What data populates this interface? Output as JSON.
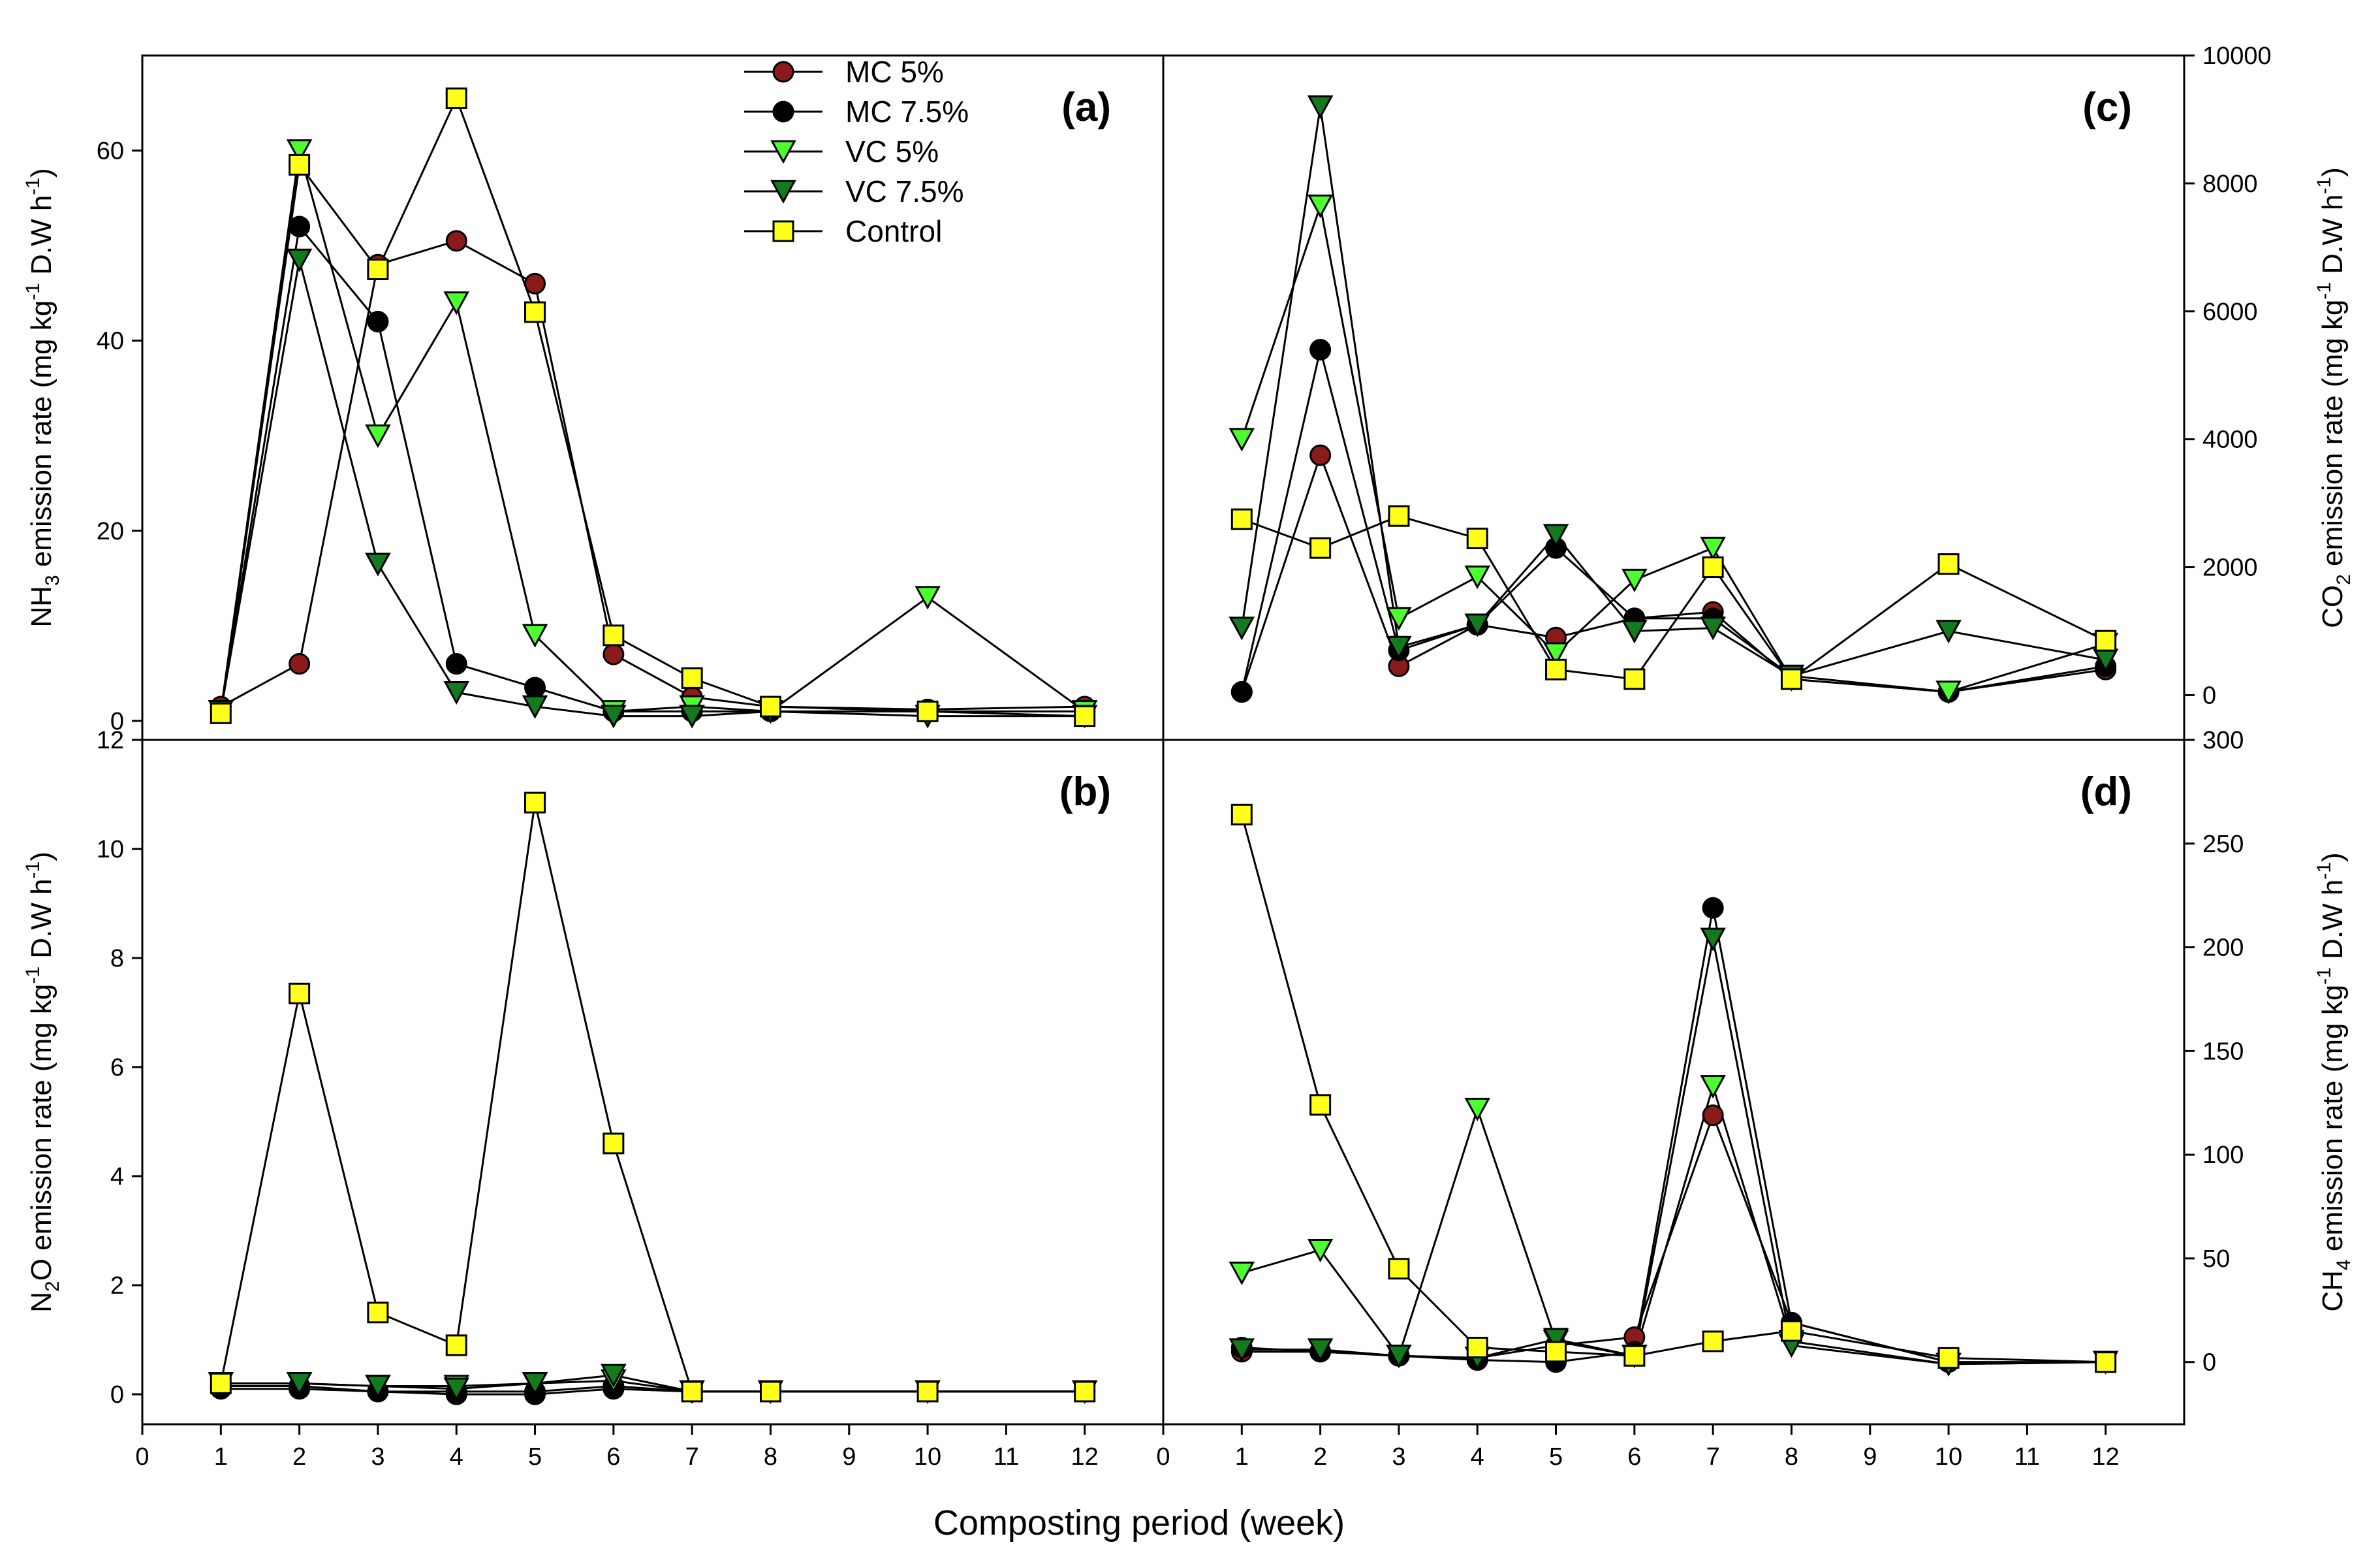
{
  "chart_data": {
    "x_axis_label": "Composting period (week)",
    "legend": [
      {
        "name": "MC 5%",
        "marker": "circle",
        "color": "#8b1a1a"
      },
      {
        "name": "MC 7.5%",
        "marker": "circle",
        "color": "#000000"
      },
      {
        "name": "VC 5%",
        "marker": "triangle-down",
        "color": "#4cff2e"
      },
      {
        "name": "VC 7.5%",
        "marker": "triangle-down",
        "color": "#137a1e"
      },
      {
        "name": "Control",
        "marker": "square",
        "color": "#ffff1a"
      }
    ],
    "panels": [
      {
        "id": "a",
        "tag": "(a)",
        "type": "line",
        "ylabel": "NH3 emission rate (mg kg-1 D.W h-1)",
        "ylabel_parts": {
          "pre": "NH",
          "sub1": "3",
          "mid": " emission rate (mg kg",
          "sup": "-1",
          "post": " D.W h",
          "sup2": "-1",
          "end": ")"
        },
        "y_side": "left",
        "ylim": [
          -2,
          70
        ],
        "yticks": [
          0,
          20,
          40,
          60
        ],
        "xlim": [
          0,
          13
        ],
        "xticks": [],
        "series": [
          {
            "name": "MC 5%",
            "x": [
              1,
              2,
              3,
              4,
              5,
              6,
              7,
              8,
              10,
              12
            ],
            "values": [
              1.5,
              6,
              48,
              50.5,
              46,
              7,
              2.5,
              1.5,
              1.2,
              1.5
            ]
          },
          {
            "name": "MC 7.5%",
            "x": [
              1,
              2,
              3,
              4,
              5,
              6,
              7,
              8,
              10,
              12
            ],
            "values": [
              1,
              52,
              42,
              6,
              3.5,
              1,
              1,
              1,
              1,
              1
            ]
          },
          {
            "name": "VC 5%",
            "x": [
              1,
              2,
              3,
              4,
              5,
              6,
              7,
              8,
              10,
              12
            ],
            "values": [
              1,
              60,
              30,
              44,
              9,
              1,
              1.5,
              1,
              13,
              1
            ]
          },
          {
            "name": "VC 7.5%",
            "x": [
              1,
              2,
              3,
              4,
              5,
              6,
              7,
              8,
              10,
              12
            ],
            "values": [
              1,
              48.5,
              16.5,
              3,
              1.5,
              0.5,
              0.5,
              1,
              0.5,
              0.5
            ]
          },
          {
            "name": "Control",
            "x": [
              1,
              2,
              3,
              4,
              5,
              6,
              7,
              8,
              10,
              12
            ],
            "values": [
              0.8,
              58.5,
              47.5,
              65.5,
              43,
              9,
              4.5,
              1.5,
              1,
              0.5
            ]
          }
        ]
      },
      {
        "id": "b",
        "tag": "(b)",
        "type": "line",
        "ylabel": "N2O emission rate (mg kg-1 D.W h-1)",
        "ylabel_parts": {
          "pre": "N",
          "sub1": "2",
          "mid": "O emission rate (mg kg",
          "sup": "-1",
          "post": " D.W h",
          "sup2": "-1",
          "end": ")"
        },
        "y_side": "left",
        "ylim": [
          -0.55,
          12
        ],
        "yticks": [
          0,
          2,
          4,
          6,
          8,
          10,
          12
        ],
        "xlim": [
          0,
          13
        ],
        "xticks": [
          0,
          1,
          2,
          3,
          4,
          5,
          6,
          7,
          8,
          9,
          10,
          11,
          12
        ],
        "series": [
          {
            "name": "MC 5%",
            "x": [
              1,
              2,
              3,
              4,
              5,
              6,
              7,
              8,
              10,
              12
            ],
            "values": [
              0.15,
              0.15,
              0.05,
              0.05,
              0.05,
              0.15,
              0.05,
              0.05,
              0.05,
              0.05
            ]
          },
          {
            "name": "MC 7.5%",
            "x": [
              1,
              2,
              3,
              4,
              5,
              6,
              7,
              8,
              10,
              12
            ],
            "values": [
              0.1,
              0.1,
              0.05,
              0.0,
              0.0,
              0.1,
              0.05,
              0.05,
              0.05,
              0.05
            ]
          },
          {
            "name": "VC 5%",
            "x": [
              1,
              2,
              3,
              4,
              5,
              6,
              7,
              8,
              10,
              12
            ],
            "values": [
              0.2,
              0.2,
              0.15,
              0.15,
              0.2,
              0.25,
              0.05,
              0.05,
              0.05,
              0.05
            ]
          },
          {
            "name": "VC 7.5%",
            "x": [
              1,
              2,
              3,
              4,
              5,
              6,
              7,
              8,
              10,
              12
            ],
            "values": [
              0.2,
              0.2,
              0.15,
              0.1,
              0.2,
              0.35,
              0.05,
              0.05,
              0.05,
              0.05
            ]
          },
          {
            "name": "Control",
            "x": [
              1,
              2,
              3,
              4,
              5,
              6,
              7,
              8,
              10,
              12
            ],
            "values": [
              0.2,
              7.35,
              1.5,
              0.9,
              10.85,
              4.6,
              0.05,
              0.05,
              0.05,
              0.05
            ]
          }
        ]
      },
      {
        "id": "c",
        "tag": "(c)",
        "type": "line",
        "ylabel": "CO2 emission rate (mg kg-1 D.W h-1)",
        "ylabel_parts": {
          "pre": "CO",
          "sub1": "2",
          "mid": " emission rate (mg kg",
          "sup": "-1",
          "post": " D.W h",
          "sup2": "-1",
          "end": ")"
        },
        "y_side": "right",
        "ylim": [
          -700,
          10000
        ],
        "yticks": [
          0,
          2000,
          4000,
          6000,
          8000,
          10000
        ],
        "xlim": [
          0,
          13
        ],
        "xticks": [],
        "series": [
          {
            "name": "MC 5%",
            "x": [
              1,
              2,
              3,
              4,
              5,
              6,
              7,
              8,
              10,
              12
            ],
            "values": [
              50,
              3750,
              450,
              1100,
              900,
              1200,
              1300,
              250,
              50,
              400
            ]
          },
          {
            "name": "MC 7.5%",
            "x": [
              1,
              2,
              3,
              4,
              5,
              6,
              7,
              8,
              10,
              12
            ],
            "values": [
              50,
              5400,
              700,
              1100,
              2300,
              1200,
              1200,
              300,
              50,
              450
            ]
          },
          {
            "name": "VC 5%",
            "x": [
              1,
              2,
              3,
              4,
              5,
              6,
              7,
              8,
              10,
              12
            ],
            "values": [
              4000,
              7650,
              1200,
              1850,
              650,
              1800,
              2300,
              250,
              50,
              800
            ]
          },
          {
            "name": "VC 7.5%",
            "x": [
              1,
              2,
              3,
              4,
              5,
              6,
              7,
              8,
              10,
              12
            ],
            "values": [
              1050,
              9200,
              750,
              1100,
              2500,
              1000,
              1050,
              300,
              1000,
              550
            ]
          },
          {
            "name": "Control",
            "x": [
              1,
              2,
              3,
              4,
              5,
              6,
              7,
              8,
              10,
              12
            ],
            "values": [
              2750,
              2300,
              2800,
              2450,
              400,
              250,
              2000,
              250,
              2050,
              850
            ]
          }
        ]
      },
      {
        "id": "d",
        "tag": "(d)",
        "type": "line",
        "ylabel": "CH4 emission rate (mg kg-1 D.W h-1)",
        "ylabel_parts": {
          "pre": "CH",
          "sub1": "4",
          "mid": " emission rate (mg kg",
          "sup": "-1",
          "post": " D.W h",
          "sup2": "-1",
          "end": ")"
        },
        "y_side": "right",
        "ylim": [
          -30,
          300
        ],
        "yticks": [
          0,
          50,
          100,
          150,
          200,
          250,
          300
        ],
        "xlim": [
          0,
          13
        ],
        "xticks": [
          0,
          1,
          2,
          3,
          4,
          5,
          6,
          7,
          8,
          9,
          10,
          11,
          12
        ],
        "series": [
          {
            "name": "MC 5%",
            "x": [
              1,
              2,
              3,
              4,
              5,
              6,
              7,
              8,
              10,
              12
            ],
            "values": [
              5,
              5,
              3,
              2,
              8,
              12,
              119,
              19,
              0,
              0
            ]
          },
          {
            "name": "MC 7.5%",
            "x": [
              1,
              2,
              3,
              4,
              5,
              6,
              7,
              8,
              10,
              12
            ],
            "values": [
              7,
              5,
              3,
              1,
              0,
              5,
              219,
              19,
              0,
              0
            ]
          },
          {
            "name": "VC 5%",
            "x": [
              1,
              2,
              3,
              4,
              5,
              6,
              7,
              8,
              10,
              12
            ],
            "values": [
              43,
              54,
              3,
              122,
              10,
              3,
              133,
              10,
              -1,
              0
            ]
          },
          {
            "name": "VC 7.5%",
            "x": [
              1,
              2,
              3,
              4,
              5,
              6,
              7,
              8,
              10,
              12
            ],
            "values": [
              6,
              6,
              3,
              2,
              11,
              3,
              204,
              8,
              -1,
              0
            ]
          },
          {
            "name": "Control",
            "x": [
              1,
              2,
              3,
              4,
              5,
              6,
              7,
              8,
              10,
              12
            ],
            "values": [
              264,
              124,
              45,
              7,
              5,
              3,
              10,
              15,
              2,
              0
            ]
          }
        ]
      }
    ]
  }
}
